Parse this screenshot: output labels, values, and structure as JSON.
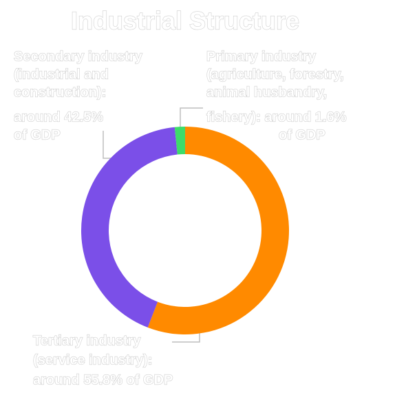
{
  "chart_data": {
    "type": "donut",
    "title": "Industrial Structure",
    "categories": [
      "Tertiary industry",
      "Secondary industry",
      "Primary industry"
    ],
    "values": [
      55.8,
      42.5,
      1.6
    ],
    "colors": [
      "#ff8a00",
      "#7b4fe8",
      "#3ddc6a"
    ],
    "labels": [
      [
        "Tertiary industry",
        "(service industry):",
        "around 55.8% of GDP"
      ],
      [
        "Secondary industry",
        "(industrial and",
        "construction):",
        "around 42.5%",
        "of GDP"
      ],
      [
        "Primary industry",
        "(agriculture, forestry,",
        "animal husbandry,",
        "fishery): around 1.6%",
        "of GDP"
      ]
    ]
  }
}
